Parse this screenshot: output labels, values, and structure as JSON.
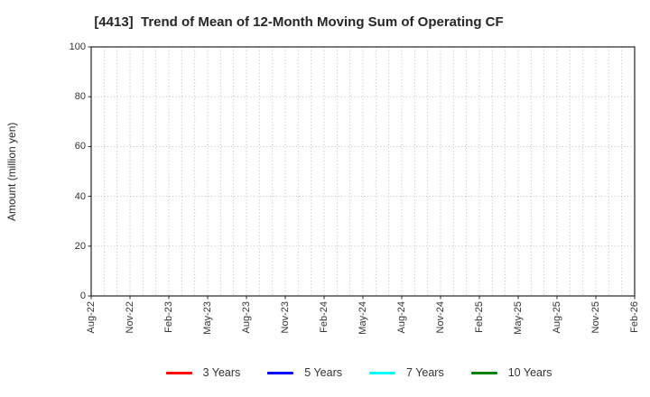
{
  "chart": {
    "title": "[4413]  Trend of Mean of 12-Month Moving Sum of Operating CF",
    "ylabel": "Amount (million yen)"
  },
  "chart_data": {
    "type": "line",
    "title": "[4413]  Trend of Mean of 12-Month Moving Sum of Operating CF",
    "xlabel": "",
    "ylabel": "Amount (million yen)",
    "ylim": [
      0,
      100
    ],
    "y_ticks": [
      0,
      20,
      40,
      60,
      80,
      100
    ],
    "x_ticks": [
      "Aug-22",
      "Nov-22",
      "Feb-23",
      "May-23",
      "Aug-23",
      "Nov-23",
      "Feb-24",
      "May-24",
      "Aug-24",
      "Nov-24",
      "Feb-25",
      "May-25",
      "Aug-25",
      "Nov-25",
      "Feb-26"
    ],
    "x_tick_rotation": 90,
    "minor_intervals_per_major": 3,
    "grid": true,
    "grid_style": "dotted",
    "grid_color": "#b3b3b3",
    "frame_color": "#262626",
    "legend_position": "bottom",
    "series": [
      {
        "name": "3 Years",
        "color": "#ff0000",
        "values": []
      },
      {
        "name": "5 Years",
        "color": "#0000ff",
        "values": []
      },
      {
        "name": "7 Years",
        "color": "#00ffff",
        "values": []
      },
      {
        "name": "10 Years",
        "color": "#008000",
        "values": []
      }
    ]
  }
}
